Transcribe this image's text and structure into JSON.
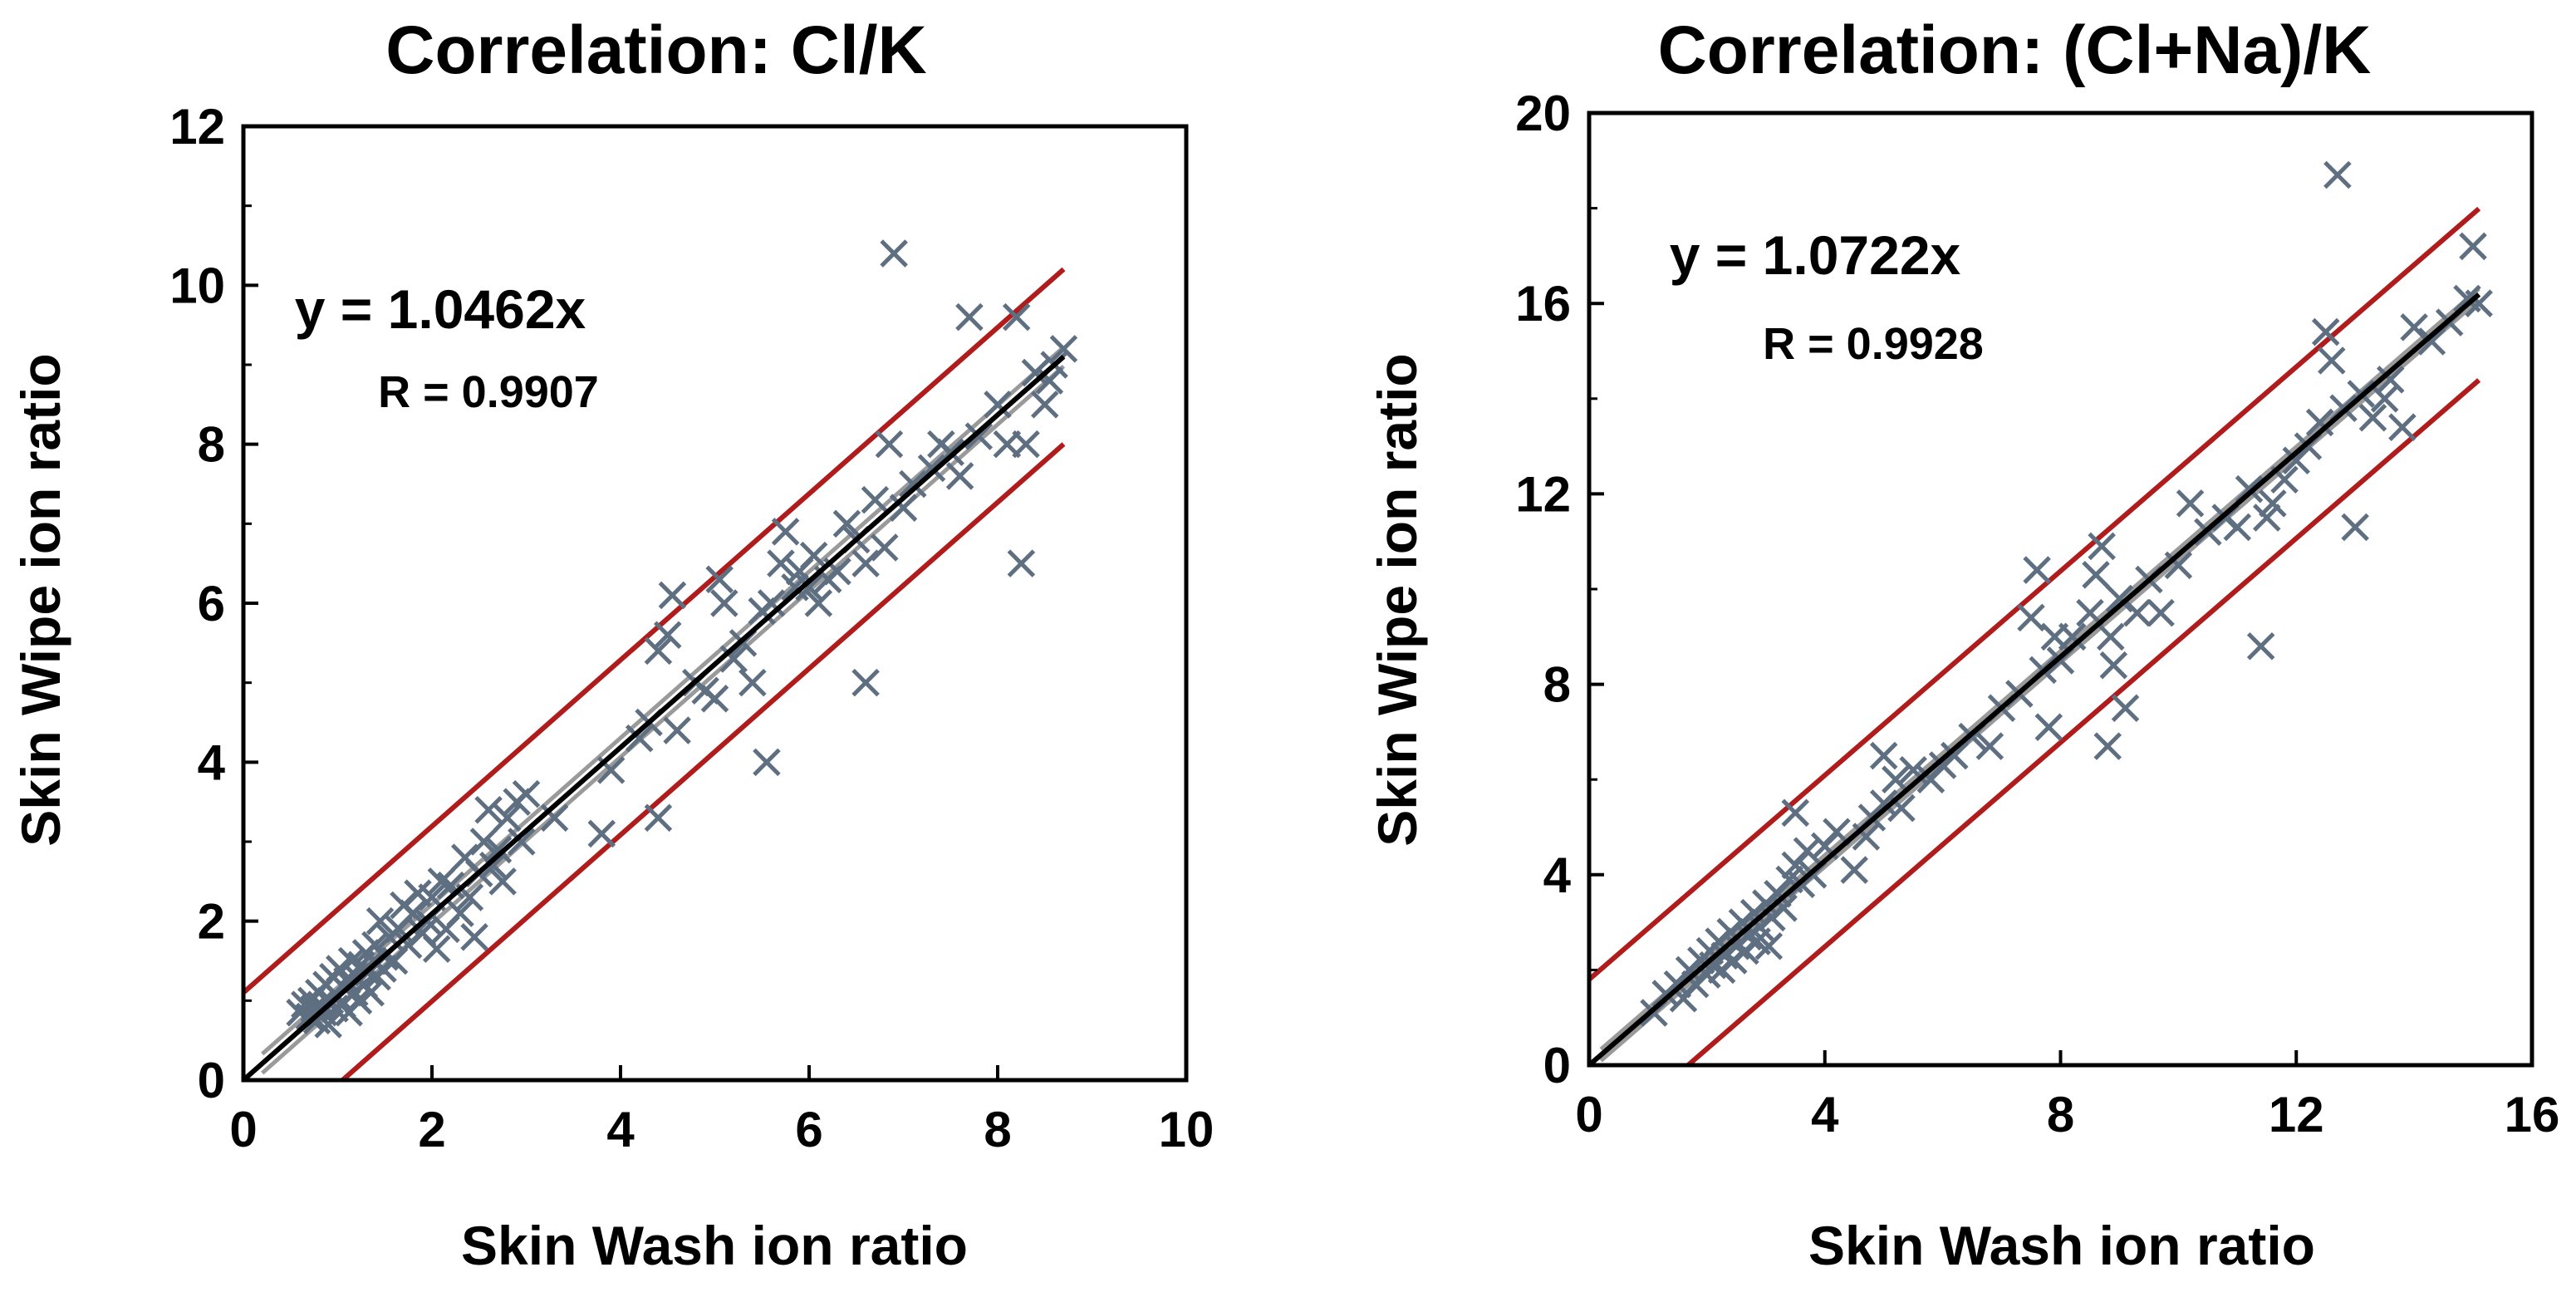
{
  "colors": {
    "marker": "#5f6f82",
    "fit_line": "#000000",
    "ci_band": "#9a9a9a",
    "prediction_band": "#b01c1c",
    "axes": "#000000"
  },
  "chart_data": [
    {
      "type": "scatter",
      "title": "Correlation: Cl/K",
      "xlabel": "Skin Wash ion ratio",
      "ylabel": "Skin Wipe ion ratio",
      "xlim": [
        0,
        10
      ],
      "ylim": [
        0,
        12
      ],
      "xticks": [
        0,
        2,
        4,
        6,
        8,
        10
      ],
      "yticks": [
        0,
        2,
        4,
        6,
        8,
        10,
        12
      ],
      "marker": "x",
      "equation": "y = 1.0462x",
      "r_label": "R = 0.9907",
      "fit": {
        "slope": 1.0462,
        "x_range": [
          0,
          8.7
        ]
      },
      "prediction_band": {
        "offset": 1.1
      },
      "points": [
        [
          0.6,
          0.85
        ],
        [
          0.65,
          0.95
        ],
        [
          0.7,
          0.8
        ],
        [
          0.72,
          1.0
        ],
        [
          0.75,
          0.9
        ],
        [
          0.78,
          0.75
        ],
        [
          0.8,
          1.1
        ],
        [
          0.82,
          0.95
        ],
        [
          0.85,
          0.85
        ],
        [
          0.88,
          1.2
        ],
        [
          0.9,
          0.7
        ],
        [
          0.92,
          1.0
        ],
        [
          0.95,
          1.3
        ],
        [
          0.97,
          0.9
        ],
        [
          1.0,
          1.05
        ],
        [
          1.02,
          1.4
        ],
        [
          1.05,
          0.95
        ],
        [
          1.08,
          1.15
        ],
        [
          1.1,
          1.25
        ],
        [
          1.12,
          0.85
        ],
        [
          1.15,
          1.5
        ],
        [
          1.18,
          1.1
        ],
        [
          1.2,
          1.3
        ],
        [
          1.22,
          1.0
        ],
        [
          1.25,
          1.45
        ],
        [
          1.28,
          1.2
        ],
        [
          1.3,
          1.6
        ],
        [
          1.32,
          1.35
        ],
        [
          1.35,
          1.1
        ],
        [
          1.38,
          1.5
        ],
        [
          1.4,
          1.7
        ],
        [
          1.42,
          1.3
        ],
        [
          1.45,
          2.0
        ],
        [
          1.48,
          1.4
        ],
        [
          1.5,
          1.55
        ],
        [
          1.55,
          1.8
        ],
        [
          1.6,
          1.5
        ],
        [
          1.65,
          1.9
        ],
        [
          1.7,
          2.2
        ],
        [
          1.75,
          1.7
        ],
        [
          1.8,
          2.1
        ],
        [
          1.85,
          2.35
        ],
        [
          1.9,
          1.85
        ],
        [
          1.95,
          2.0
        ],
        [
          2.0,
          2.3
        ],
        [
          2.05,
          1.65
        ],
        [
          2.1,
          2.5
        ],
        [
          2.15,
          1.9
        ],
        [
          2.2,
          2.45
        ],
        [
          2.3,
          2.1
        ],
        [
          2.35,
          2.8
        ],
        [
          2.4,
          2.3
        ],
        [
          2.45,
          1.8
        ],
        [
          2.5,
          2.6
        ],
        [
          2.55,
          3.0
        ],
        [
          2.6,
          3.4
        ],
        [
          2.65,
          2.7
        ],
        [
          2.7,
          2.9
        ],
        [
          2.75,
          2.5
        ],
        [
          2.8,
          3.3
        ],
        [
          2.9,
          3.5
        ],
        [
          2.95,
          3.0
        ],
        [
          3.0,
          3.6
        ],
        [
          3.3,
          3.3
        ],
        [
          3.8,
          3.1
        ],
        [
          3.9,
          3.9
        ],
        [
          4.2,
          4.3
        ],
        [
          4.3,
          4.5
        ],
        [
          4.4,
          3.3
        ],
        [
          4.4,
          5.4
        ],
        [
          4.5,
          5.6
        ],
        [
          4.55,
          6.1
        ],
        [
          4.6,
          4.4
        ],
        [
          4.8,
          5.0
        ],
        [
          4.9,
          4.9
        ],
        [
          5.0,
          4.8
        ],
        [
          5.05,
          6.3
        ],
        [
          5.1,
          6.0
        ],
        [
          5.2,
          5.3
        ],
        [
          5.3,
          5.5
        ],
        [
          5.4,
          5.0
        ],
        [
          5.5,
          5.9
        ],
        [
          5.55,
          4.0
        ],
        [
          5.6,
          6.0
        ],
        [
          5.7,
          6.5
        ],
        [
          5.75,
          6.9
        ],
        [
          5.85,
          6.2
        ],
        [
          5.9,
          6.4
        ],
        [
          6.0,
          6.2
        ],
        [
          6.05,
          6.6
        ],
        [
          6.1,
          6.0
        ],
        [
          6.2,
          6.3
        ],
        [
          6.3,
          6.4
        ],
        [
          6.4,
          7.0
        ],
        [
          6.5,
          6.8
        ],
        [
          6.6,
          5.0
        ],
        [
          6.6,
          6.5
        ],
        [
          6.7,
          7.3
        ],
        [
          6.8,
          6.7
        ],
        [
          6.85,
          8.0
        ],
        [
          6.9,
          10.4
        ],
        [
          7.0,
          7.2
        ],
        [
          7.1,
          7.5
        ],
        [
          7.3,
          7.7
        ],
        [
          7.4,
          8.0
        ],
        [
          7.5,
          7.9
        ],
        [
          7.6,
          7.6
        ],
        [
          7.7,
          9.6
        ],
        [
          7.8,
          8.1
        ],
        [
          8.0,
          8.5
        ],
        [
          8.1,
          8.0
        ],
        [
          8.2,
          9.6
        ],
        [
          8.25,
          6.5
        ],
        [
          8.3,
          8.0
        ],
        [
          8.4,
          8.9
        ],
        [
          8.5,
          8.5
        ],
        [
          8.55,
          8.8
        ],
        [
          8.6,
          9.0
        ],
        [
          8.7,
          9.2
        ]
      ]
    },
    {
      "type": "scatter",
      "title": "Correlation: (Cl+Na)/K",
      "xlabel": "Skin Wash ion ratio",
      "ylabel": "Skin Wipe ion ratio",
      "xlim": [
        0,
        16
      ],
      "ylim": [
        0,
        20
      ],
      "xticks": [
        0,
        4,
        8,
        12,
        16
      ],
      "yticks": [
        0,
        4,
        8,
        12,
        16,
        20
      ],
      "marker": "x",
      "equation": "y = 1.0722x",
      "r_label": "R = 0.9928",
      "fit": {
        "slope": 1.0722,
        "x_range": [
          0,
          15.1
        ]
      },
      "prediction_band": {
        "offset": 1.8
      },
      "points": [
        [
          1.1,
          1.1
        ],
        [
          1.3,
          1.5
        ],
        [
          1.5,
          1.7
        ],
        [
          1.6,
          1.4
        ],
        [
          1.7,
          2.0
        ],
        [
          1.8,
          1.7
        ],
        [
          1.9,
          2.2
        ],
        [
          2.0,
          1.9
        ],
        [
          2.05,
          2.4
        ],
        [
          2.1,
          2.1
        ],
        [
          2.2,
          2.6
        ],
        [
          2.25,
          2.0
        ],
        [
          2.3,
          2.3
        ],
        [
          2.4,
          2.8
        ],
        [
          2.45,
          2.2
        ],
        [
          2.5,
          2.5
        ],
        [
          2.6,
          3.0
        ],
        [
          2.65,
          2.4
        ],
        [
          2.7,
          2.7
        ],
        [
          2.8,
          3.2
        ],
        [
          2.85,
          2.6
        ],
        [
          2.9,
          2.9
        ],
        [
          3.0,
          3.4
        ],
        [
          3.05,
          2.5
        ],
        [
          3.1,
          3.1
        ],
        [
          3.2,
          3.6
        ],
        [
          3.3,
          3.3
        ],
        [
          3.4,
          3.9
        ],
        [
          3.5,
          5.3
        ],
        [
          3.5,
          4.2
        ],
        [
          3.6,
          3.8
        ],
        [
          3.7,
          4.5
        ],
        [
          3.8,
          4.0
        ],
        [
          4.0,
          4.6
        ],
        [
          4.2,
          4.9
        ],
        [
          4.5,
          4.1
        ],
        [
          4.7,
          4.8
        ],
        [
          4.8,
          5.2
        ],
        [
          5.0,
          6.5
        ],
        [
          5.0,
          5.5
        ],
        [
          5.2,
          6.0
        ],
        [
          5.3,
          5.4
        ],
        [
          5.5,
          6.2
        ],
        [
          5.8,
          6.0
        ],
        [
          6.0,
          6.3
        ],
        [
          6.2,
          6.5
        ],
        [
          6.5,
          6.9
        ],
        [
          6.8,
          6.7
        ],
        [
          7.0,
          7.5
        ],
        [
          7.3,
          7.8
        ],
        [
          7.5,
          9.4
        ],
        [
          7.6,
          10.4
        ],
        [
          7.7,
          8.3
        ],
        [
          7.8,
          7.1
        ],
        [
          7.9,
          9.0
        ],
        [
          8.0,
          8.5
        ],
        [
          8.2,
          9.0
        ],
        [
          8.5,
          9.5
        ],
        [
          8.6,
          10.3
        ],
        [
          8.7,
          10.9
        ],
        [
          8.8,
          6.7
        ],
        [
          8.85,
          9.0
        ],
        [
          8.9,
          8.4
        ],
        [
          9.0,
          9.8
        ],
        [
          9.1,
          7.5
        ],
        [
          9.3,
          9.5
        ],
        [
          9.5,
          10.2
        ],
        [
          9.7,
          9.5
        ],
        [
          10.0,
          10.5
        ],
        [
          10.2,
          11.8
        ],
        [
          10.5,
          11.2
        ],
        [
          10.8,
          11.5
        ],
        [
          11.0,
          11.3
        ],
        [
          11.2,
          12.1
        ],
        [
          11.4,
          8.8
        ],
        [
          11.5,
          11.5
        ],
        [
          11.6,
          11.8
        ],
        [
          11.8,
          12.3
        ],
        [
          12.0,
          12.7
        ],
        [
          12.2,
          13.0
        ],
        [
          12.4,
          13.5
        ],
        [
          12.5,
          15.4
        ],
        [
          12.6,
          14.8
        ],
        [
          12.7,
          18.7
        ],
        [
          12.8,
          13.8
        ],
        [
          13.0,
          11.3
        ],
        [
          13.1,
          14.1
        ],
        [
          13.3,
          13.6
        ],
        [
          13.5,
          14.0
        ],
        [
          13.6,
          14.4
        ],
        [
          13.8,
          13.4
        ],
        [
          14.0,
          15.5
        ],
        [
          14.3,
          15.2
        ],
        [
          14.6,
          15.6
        ],
        [
          14.9,
          16.1
        ],
        [
          15.0,
          17.2
        ],
        [
          15.1,
          16.0
        ]
      ]
    }
  ]
}
